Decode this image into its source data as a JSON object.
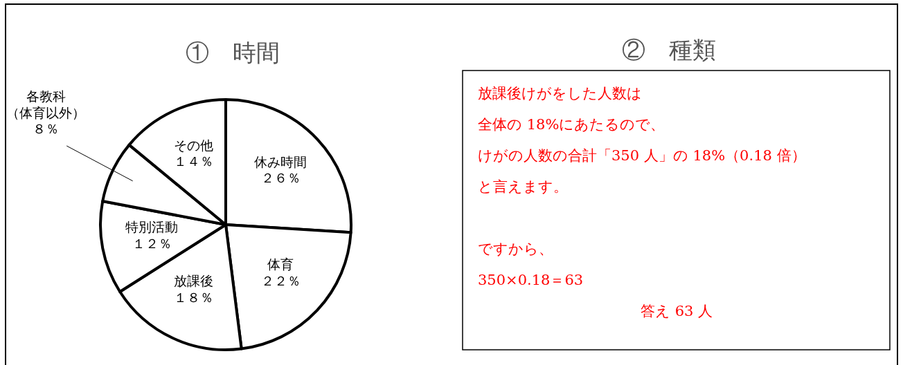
{
  "chart_data": [
    {
      "type": "pie",
      "title": "①　時間",
      "categories": [
        "休み時間",
        "体育",
        "放課後",
        "特別活動",
        "各教科（体育以外）",
        "その他"
      ],
      "values": [
        26,
        22,
        18,
        12,
        8,
        14
      ],
      "value_labels": [
        "２６％",
        "２２％",
        "１８％",
        "１２％",
        "８％",
        "１４％"
      ],
      "colors": [
        "#ffffff",
        "#ffffff",
        "#ffffff",
        "#ffffff",
        "#ffffff",
        "#ffffff"
      ]
    },
    {
      "type": "other",
      "title": "②　種類",
      "annotations": [
        "放課後けがをした人数は",
        "全体の 18%にあたるので、",
        "けがの人数の合計「350 人」の 18%（0.18 倍）",
        "と言えます。",
        "ですから、",
        "350×0.18＝63",
        "答え 63 人"
      ]
    }
  ]
}
